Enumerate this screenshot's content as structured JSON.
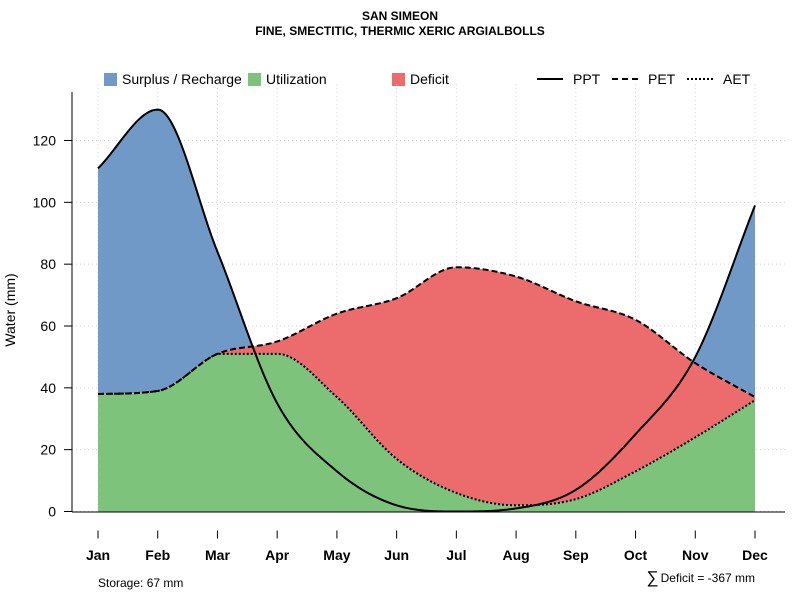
{
  "title": "SAN SIMEON",
  "subtitle": "FINE, SMECTITIC, THERMIC XERIC ARGIALBOLLS",
  "footer": {
    "storage": "Storage: 67 mm",
    "sigma": "∑",
    "deficit": "Deficit = -367 mm"
  },
  "legend": {
    "surplus": "Surplus / Recharge",
    "utilization": "Utilization",
    "deficit": "Deficit",
    "ppt": "PPT",
    "pet": "PET",
    "aet": "AET"
  },
  "colors": {
    "surplus": "#7199c8",
    "utilization": "#7dc37b",
    "deficit": "#ec6b6d",
    "grid": "#d3d3d3"
  },
  "chart_data": {
    "type": "area",
    "title": "SAN SIMEON",
    "subtitle": "FINE, SMECTITIC, THERMIC XERIC ARGIALBOLLS",
    "xlabel": "",
    "ylabel": "Water (mm)",
    "categories": [
      "Jan",
      "Feb",
      "Mar",
      "Apr",
      "May",
      "Jun",
      "Jul",
      "Aug",
      "Sep",
      "Oct",
      "Nov",
      "Dec"
    ],
    "ylim": [
      0,
      135
    ],
    "yticks": [
      0,
      20,
      40,
      60,
      80,
      100,
      120
    ],
    "grid": true,
    "series": [
      {
        "name": "PPT",
        "style": "solid",
        "values": [
          111,
          130,
          84,
          35,
          13,
          2,
          0,
          1,
          7,
          25,
          50,
          99
        ]
      },
      {
        "name": "PET",
        "style": "dashed",
        "values": [
          38,
          39,
          51,
          55,
          64,
          69,
          79,
          76,
          68,
          62,
          48,
          37
        ]
      },
      {
        "name": "AET",
        "style": "dotted",
        "values": [
          38,
          39,
          51,
          51,
          37,
          17,
          6,
          2,
          4,
          13,
          24,
          36
        ]
      }
    ],
    "regions": [
      "Surplus / Recharge",
      "Utilization",
      "Deficit"
    ],
    "storage_mm": 67,
    "total_deficit_mm": -367
  }
}
